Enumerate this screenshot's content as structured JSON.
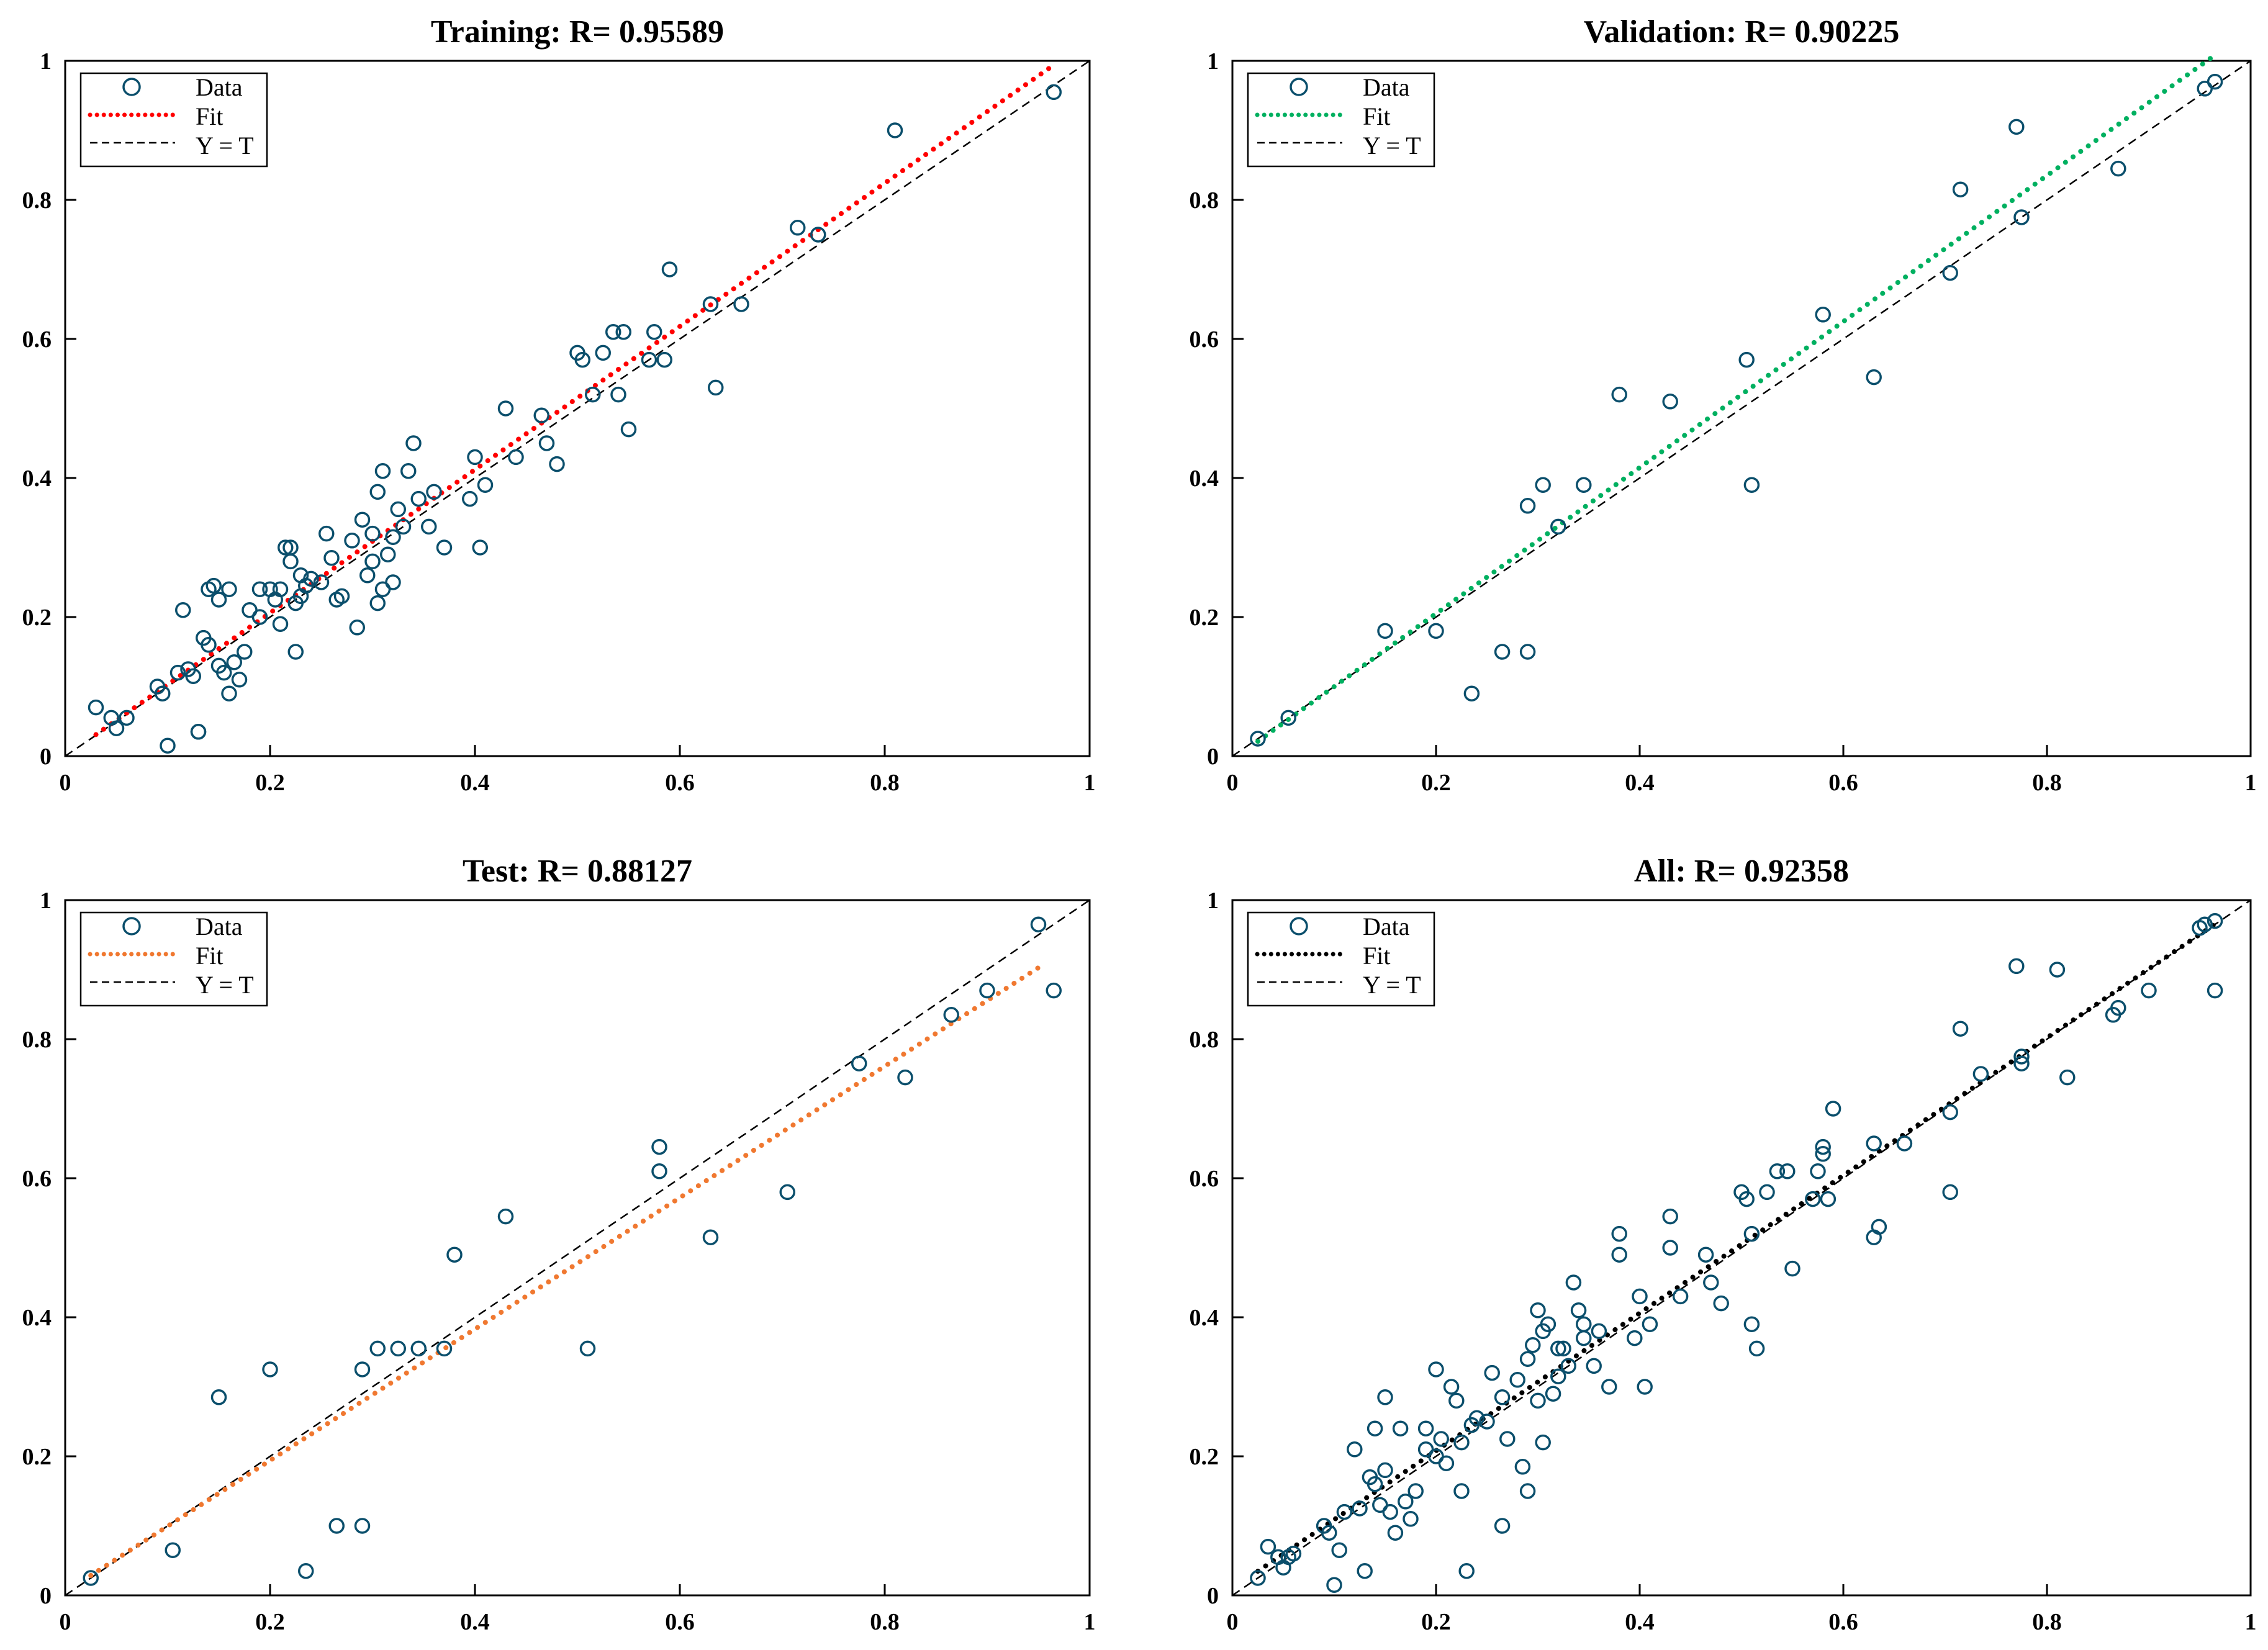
{
  "colors": {
    "marker": "#0b4f6c",
    "axis": "#000000",
    "identity": "#000000"
  },
  "chart_data": [
    {
      "type": "scatter",
      "title": "Training: R= 0.95589",
      "fit_color": "#ff0000",
      "xlim": [
        0,
        1
      ],
      "ylim": [
        0,
        1
      ],
      "xticks": [
        "0",
        "0.2",
        "0.4",
        "0.6",
        "0.8",
        "1"
      ],
      "yticks": [
        "0",
        "0.2",
        "0.4",
        "0.6",
        "0.8",
        "1"
      ],
      "legend": {
        "location": "top-left",
        "entries": [
          "Data",
          "Fit",
          "Y = T"
        ]
      },
      "fit": {
        "slope": 1.03,
        "intercept": 0.0,
        "x": [
          0.03,
          0.965
        ]
      },
      "points": {
        "x": [
          0.03,
          0.045,
          0.05,
          0.06,
          0.09,
          0.095,
          0.1,
          0.11,
          0.115,
          0.12,
          0.125,
          0.13,
          0.135,
          0.14,
          0.14,
          0.15,
          0.15,
          0.155,
          0.16,
          0.16,
          0.165,
          0.17,
          0.175,
          0.18,
          0.19,
          0.19,
          0.2,
          0.205,
          0.21,
          0.21,
          0.215,
          0.22,
          0.22,
          0.225,
          0.225,
          0.23,
          0.23,
          0.235,
          0.24,
          0.25,
          0.255,
          0.26,
          0.265,
          0.27,
          0.28,
          0.285,
          0.29,
          0.295,
          0.3,
          0.3,
          0.305,
          0.305,
          0.31,
          0.31,
          0.315,
          0.32,
          0.32,
          0.325,
          0.33,
          0.335,
          0.34,
          0.345,
          0.355,
          0.36,
          0.37,
          0.395,
          0.4,
          0.405,
          0.41,
          0.43,
          0.44,
          0.465,
          0.47,
          0.48,
          0.5,
          0.505,
          0.515,
          0.525,
          0.535,
          0.54,
          0.545,
          0.55,
          0.57,
          0.575,
          0.585,
          0.59,
          0.63,
          0.635,
          0.66,
          0.715,
          0.735,
          0.81,
          0.965,
          0.13,
          0.145
        ],
        "y": [
          0.07,
          0.055,
          0.04,
          0.055,
          0.1,
          0.09,
          0.015,
          0.12,
          0.21,
          0.125,
          0.115,
          0.035,
          0.17,
          0.16,
          0.24,
          0.13,
          0.225,
          0.12,
          0.09,
          0.24,
          0.135,
          0.11,
          0.15,
          0.21,
          0.2,
          0.24,
          0.24,
          0.225,
          0.19,
          0.24,
          0.3,
          0.28,
          0.3,
          0.15,
          0.22,
          0.23,
          0.26,
          0.245,
          0.255,
          0.25,
          0.32,
          0.285,
          0.225,
          0.23,
          0.31,
          0.185,
          0.34,
          0.26,
          0.32,
          0.28,
          0.22,
          0.38,
          0.24,
          0.41,
          0.29,
          0.315,
          0.25,
          0.355,
          0.33,
          0.41,
          0.45,
          0.37,
          0.33,
          0.38,
          0.3,
          0.37,
          0.43,
          0.3,
          0.39,
          0.5,
          0.43,
          0.49,
          0.45,
          0.42,
          0.58,
          0.57,
          0.52,
          0.58,
          0.61,
          0.52,
          0.61,
          0.47,
          0.57,
          0.61,
          0.57,
          0.7,
          0.65,
          0.53,
          0.65,
          0.76,
          0.75,
          0.9,
          0.955,
          0.035,
          0.245
        ]
      }
    },
    {
      "type": "scatter",
      "title": "Validation: R= 0.90225",
      "fit_color": "#00b060",
      "xlim": [
        0,
        1
      ],
      "ylim": [
        0,
        1
      ],
      "xticks": [
        "0",
        "0.2",
        "0.4",
        "0.6",
        "0.8",
        "1"
      ],
      "yticks": [
        "0",
        "0.2",
        "0.4",
        "0.6",
        "0.8",
        "1"
      ],
      "legend": {
        "location": "top-left",
        "entries": [
          "Data",
          "Fit",
          "Y = T"
        ]
      },
      "fit": {
        "slope": 1.05,
        "intercept": -0.005,
        "x": [
          0.025,
          0.965
        ]
      },
      "points": {
        "x": [
          0.025,
          0.055,
          0.15,
          0.2,
          0.235,
          0.265,
          0.29,
          0.29,
          0.305,
          0.32,
          0.345,
          0.38,
          0.43,
          0.505,
          0.51,
          0.58,
          0.63,
          0.705,
          0.715,
          0.77,
          0.775,
          0.87,
          0.955,
          0.965
        ],
        "y": [
          0.025,
          0.055,
          0.18,
          0.18,
          0.09,
          0.15,
          0.15,
          0.36,
          0.39,
          0.33,
          0.39,
          0.52,
          0.51,
          0.57,
          0.39,
          0.635,
          0.545,
          0.695,
          0.815,
          0.905,
          0.775,
          0.845,
          0.96,
          0.97
        ]
      }
    },
    {
      "type": "scatter",
      "title": "Test: R= 0.88127",
      "fit_color": "#f07830",
      "xlim": [
        0,
        1
      ],
      "ylim": [
        0,
        1
      ],
      "xticks": [
        "0",
        "0.2",
        "0.4",
        "0.6",
        "0.8",
        "1"
      ],
      "yticks": [
        "0",
        "0.2",
        "0.4",
        "0.6",
        "0.8",
        "1"
      ],
      "legend": {
        "location": "top-left",
        "entries": [
          "Data",
          "Fit",
          "Y = T"
        ]
      },
      "fit": {
        "slope": 0.945,
        "intercept": 0.005,
        "x": [
          0.025,
          0.955
        ]
      },
      "points": {
        "x": [
          0.025,
          0.105,
          0.15,
          0.2,
          0.235,
          0.265,
          0.29,
          0.29,
          0.305,
          0.325,
          0.345,
          0.37,
          0.38,
          0.43,
          0.51,
          0.58,
          0.58,
          0.63,
          0.705,
          0.775,
          0.82,
          0.865,
          0.9,
          0.95,
          0.965
        ],
        "y": [
          0.025,
          0.065,
          0.285,
          0.325,
          0.035,
          0.1,
          0.1,
          0.325,
          0.355,
          0.355,
          0.355,
          0.355,
          0.49,
          0.545,
          0.355,
          0.645,
          0.61,
          0.515,
          0.58,
          0.765,
          0.745,
          0.835,
          0.87,
          0.965,
          0.87
        ]
      }
    },
    {
      "type": "scatter",
      "title": "All: R= 0.92358",
      "fit_color": "#000000",
      "xlim": [
        0,
        1
      ],
      "ylim": [
        0,
        1
      ],
      "xticks": [
        "0",
        "0.2",
        "0.4",
        "0.6",
        "0.8",
        "1"
      ],
      "yticks": [
        "0",
        "0.2",
        "0.4",
        "0.6",
        "0.8",
        "1"
      ],
      "legend": {
        "location": "top-left",
        "entries": [
          "Data",
          "Fit",
          "Y = T"
        ]
      },
      "fit": {
        "slope": 0.99,
        "intercept": 0.01,
        "x": [
          0.025,
          0.965
        ]
      },
      "points": {
        "x": [
          0.025,
          0.035,
          0.045,
          0.05,
          0.055,
          0.06,
          0.09,
          0.095,
          0.1,
          0.105,
          0.11,
          0.12,
          0.125,
          0.13,
          0.135,
          0.14,
          0.14,
          0.145,
          0.15,
          0.15,
          0.155,
          0.16,
          0.165,
          0.17,
          0.175,
          0.18,
          0.19,
          0.19,
          0.2,
          0.2,
          0.205,
          0.21,
          0.215,
          0.22,
          0.225,
          0.225,
          0.23,
          0.235,
          0.24,
          0.25,
          0.255,
          0.265,
          0.265,
          0.27,
          0.28,
          0.285,
          0.29,
          0.29,
          0.295,
          0.3,
          0.3,
          0.305,
          0.305,
          0.31,
          0.315,
          0.32,
          0.32,
          0.325,
          0.33,
          0.335,
          0.34,
          0.345,
          0.345,
          0.355,
          0.36,
          0.37,
          0.38,
          0.38,
          0.395,
          0.4,
          0.405,
          0.41,
          0.43,
          0.43,
          0.44,
          0.465,
          0.47,
          0.48,
          0.5,
          0.505,
          0.51,
          0.51,
          0.515,
          0.525,
          0.535,
          0.545,
          0.55,
          0.57,
          0.575,
          0.58,
          0.58,
          0.585,
          0.59,
          0.63,
          0.63,
          0.635,
          0.66,
          0.705,
          0.705,
          0.715,
          0.735,
          0.77,
          0.775,
          0.775,
          0.81,
          0.82,
          0.865,
          0.87,
          0.9,
          0.95,
          0.955,
          0.965,
          0.965
        ],
        "y": [
          0.025,
          0.07,
          0.055,
          0.04,
          0.055,
          0.06,
          0.1,
          0.09,
          0.015,
          0.065,
          0.12,
          0.21,
          0.125,
          0.035,
          0.17,
          0.16,
          0.24,
          0.13,
          0.18,
          0.285,
          0.12,
          0.09,
          0.24,
          0.135,
          0.11,
          0.15,
          0.21,
          0.24,
          0.2,
          0.325,
          0.225,
          0.19,
          0.3,
          0.28,
          0.15,
          0.22,
          0.035,
          0.245,
          0.255,
          0.25,
          0.32,
          0.285,
          0.1,
          0.225,
          0.31,
          0.185,
          0.34,
          0.15,
          0.36,
          0.28,
          0.41,
          0.22,
          0.38,
          0.39,
          0.29,
          0.315,
          0.355,
          0.355,
          0.33,
          0.45,
          0.41,
          0.37,
          0.39,
          0.33,
          0.38,
          0.3,
          0.49,
          0.52,
          0.37,
          0.43,
          0.3,
          0.39,
          0.5,
          0.545,
          0.43,
          0.49,
          0.45,
          0.42,
          0.58,
          0.57,
          0.52,
          0.39,
          0.355,
          0.58,
          0.61,
          0.61,
          0.47,
          0.57,
          0.61,
          0.635,
          0.645,
          0.57,
          0.7,
          0.65,
          0.515,
          0.53,
          0.65,
          0.695,
          0.58,
          0.815,
          0.75,
          0.905,
          0.775,
          0.765,
          0.9,
          0.745,
          0.835,
          0.845,
          0.87,
          0.96,
          0.965,
          0.97,
          0.87
        ]
      }
    }
  ]
}
